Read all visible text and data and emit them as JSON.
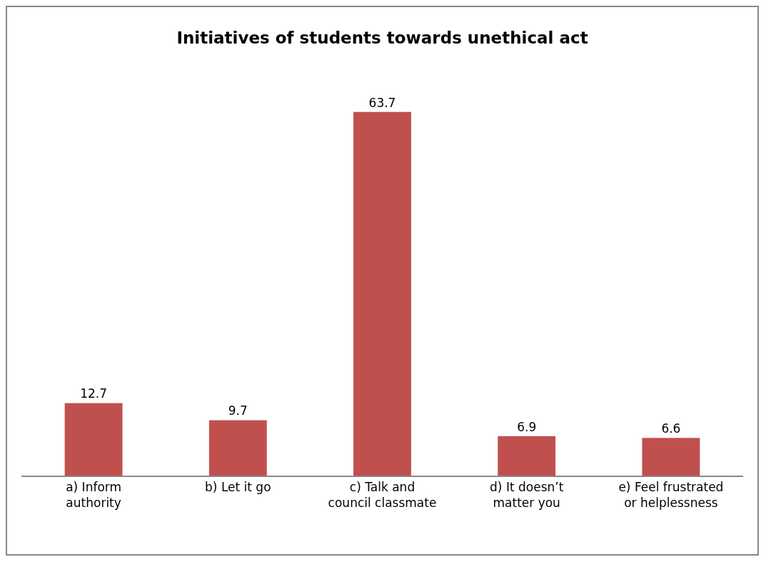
{
  "chart_data": {
    "type": "bar",
    "title": "Initiatives of students towards unethical act",
    "categories": [
      "a) Inform authority",
      "b) Let it go",
      "c) Talk and council classmate",
      "d) It doesn’t matter you",
      "e) Feel frustrated or helplessness"
    ],
    "values": [
      12.7,
      9.7,
      63.7,
      6.9,
      6.6
    ],
    "color": "#c0504d",
    "data_labels": true
  }
}
